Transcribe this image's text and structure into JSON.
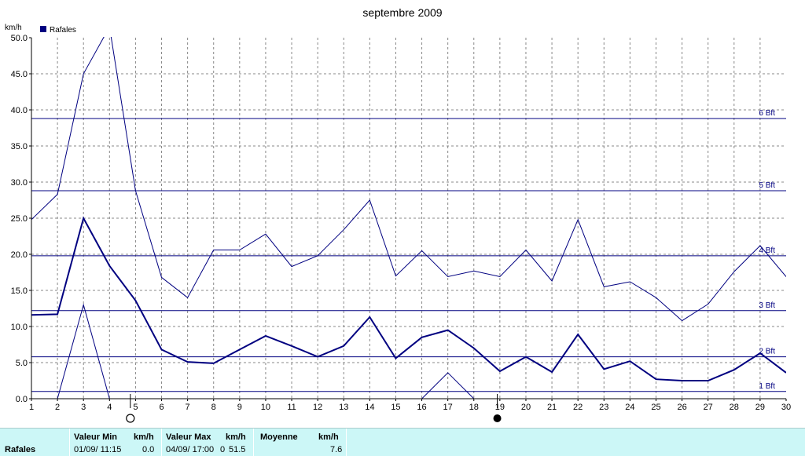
{
  "chart_data": {
    "type": "line",
    "title": "septembre 2009",
    "ylabel": "km/h",
    "legend": {
      "label": "Rafales",
      "placement": "top-left",
      "color": "#000080"
    },
    "x": [
      1,
      2,
      3,
      4,
      5,
      6,
      7,
      8,
      9,
      10,
      11,
      12,
      13,
      14,
      15,
      16,
      17,
      18,
      19,
      20,
      21,
      22,
      23,
      24,
      25,
      26,
      27,
      28,
      29,
      30
    ],
    "xlim": [
      1,
      30
    ],
    "ylim": [
      0,
      50
    ],
    "yticks": [
      "0.0",
      "5.0",
      "10.0",
      "15.0",
      "20.0",
      "25.0",
      "30.0",
      "35.0",
      "40.0",
      "45.0",
      "50.0"
    ],
    "grid": true,
    "series": [
      {
        "role": "max",
        "values": [
          24.8,
          28.3,
          45.0,
          51.5,
          28.8,
          16.8,
          14.0,
          20.6,
          20.6,
          22.8,
          18.3,
          19.8,
          23.4,
          27.5,
          17.0,
          20.5,
          16.9,
          17.7,
          16.9,
          20.6,
          16.3,
          24.8,
          15.5,
          16.2,
          14.0,
          10.8,
          13.1,
          17.6,
          21.2,
          16.9
        ]
      },
      {
        "role": "mean",
        "values": [
          11.6,
          11.7,
          25.0,
          18.4,
          13.6,
          6.8,
          5.1,
          4.9,
          6.8,
          8.7,
          7.3,
          5.8,
          7.3,
          11.3,
          5.6,
          8.5,
          9.5,
          7.0,
          3.8,
          5.8,
          3.7,
          8.9,
          4.1,
          5.2,
          2.7,
          2.5,
          2.5,
          4.0,
          6.3,
          3.6
        ]
      },
      {
        "role": "min",
        "values": [
          null,
          0.0,
          13.0,
          0.0,
          null,
          null,
          null,
          null,
          null,
          null,
          null,
          null,
          null,
          null,
          null,
          0.0,
          3.6,
          0.0,
          null,
          null,
          null,
          null,
          null,
          null,
          null,
          null,
          null,
          null,
          null,
          null
        ]
      }
    ],
    "beaufort_lines": [
      {
        "label": "1 Bft",
        "value": 1.0
      },
      {
        "label": "2 Bft",
        "value": 5.8
      },
      {
        "label": "3 Bft",
        "value": 12.2
      },
      {
        "label": "4 Bft",
        "value": 19.8
      },
      {
        "label": "5 Bft",
        "value": 28.8
      },
      {
        "label": "6 Bft",
        "value": 38.8
      }
    ],
    "moon_phases": [
      {
        "day": 4.8,
        "phase": "full-moon-icon"
      },
      {
        "day": 18.9,
        "phase": "new-moon-icon"
      }
    ],
    "colors": {
      "series": "#000080",
      "grid": "#888888",
      "axis": "#000000"
    }
  },
  "footer": {
    "row_label": "Rafales",
    "min": {
      "header": "Valeur Min",
      "unit": "km/h",
      "datetime": "01/09/  11:15",
      "value": "0.0"
    },
    "max": {
      "header": "Valeur Max",
      "unit": "km/h",
      "datetime": "04/09/  17:00",
      "overlap": "0",
      "value": "51.5"
    },
    "mean": {
      "header": "Moyenne",
      "unit": "km/h",
      "value": "7.6"
    }
  }
}
